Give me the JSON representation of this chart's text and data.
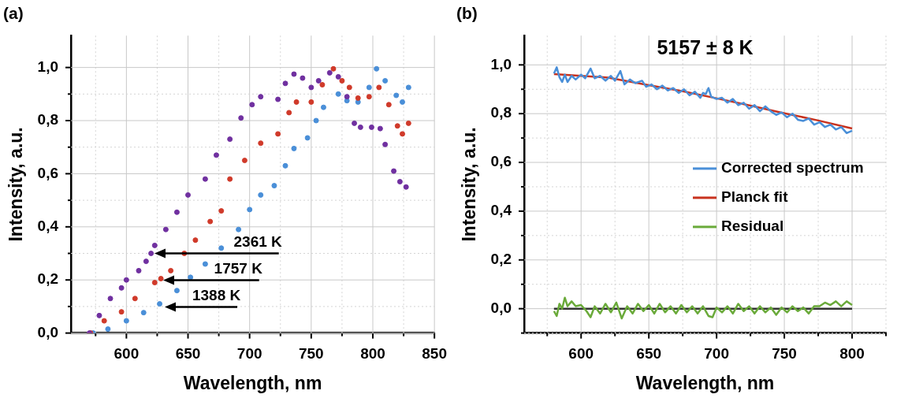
{
  "chart_data": [
    {
      "type": "scatter",
      "title": "(a)",
      "xlabel": "Wavelength, nm",
      "ylabel": "Intensity, a.u.",
      "marker": "circle",
      "grid": true,
      "legend": false,
      "xlim": [
        555,
        850
      ],
      "ylim": [
        0,
        1.12
      ],
      "xticks": [
        {
          "value": 575,
          "label": null
        },
        600,
        {
          "value": 625,
          "label": null
        },
        650,
        {
          "value": 675,
          "label": null
        },
        700,
        {
          "value": 725,
          "label": null
        },
        750,
        {
          "value": 775,
          "label": null
        },
        800,
        {
          "value": 825,
          "label": null
        },
        850
      ],
      "yticks": [
        {
          "value": 0,
          "label": "0,0"
        },
        {
          "value": 0.1,
          "label": null
        },
        {
          "value": 0.2,
          "label": "0,2"
        },
        {
          "value": 0.3,
          "label": null
        },
        {
          "value": 0.4,
          "label": "0,4"
        },
        {
          "value": 0.5,
          "label": null
        },
        {
          "value": 0.6,
          "label": "0,6"
        },
        {
          "value": 0.7,
          "label": null
        },
        {
          "value": 0.8,
          "label": "0,8"
        },
        {
          "value": 0.9,
          "label": null
        },
        {
          "value": 1.0,
          "label": "1,0"
        }
      ],
      "series": [
        {
          "color": "#7030a0",
          "x": [
            570,
            578,
            587,
            596,
            600,
            610,
            616,
            620,
            623,
            632,
            641,
            650,
            664,
            673,
            684,
            693,
            702,
            709,
            723,
            729,
            736,
            743,
            750,
            756,
            765,
            772,
            779,
            785,
            790,
            799,
            806,
            810,
            817,
            822,
            827
          ],
          "values": [
            0,
            0.066,
            0.13,
            0.17,
            0.2,
            0.235,
            0.27,
            0.3,
            0.33,
            0.39,
            0.455,
            0.52,
            0.58,
            0.67,
            0.73,
            0.81,
            0.86,
            0.89,
            0.88,
            0.94,
            0.975,
            0.96,
            0.925,
            0.95,
            0.98,
            0.965,
            0.89,
            0.79,
            0.775,
            0.775,
            0.77,
            0.71,
            0.61,
            0.57,
            0.55
          ]
        },
        {
          "color": "#d03a2a",
          "x": [
            571,
            582,
            596,
            607,
            623,
            628,
            636,
            647,
            656,
            668,
            677,
            684,
            696,
            709,
            723,
            732,
            738,
            750,
            759,
            768,
            775,
            781,
            788,
            797,
            805,
            813,
            820,
            824,
            829
          ],
          "values": [
            0,
            0.046,
            0.08,
            0.13,
            0.19,
            0.205,
            0.235,
            0.3,
            0.35,
            0.42,
            0.46,
            0.58,
            0.65,
            0.715,
            0.75,
            0.83,
            0.87,
            0.87,
            0.935,
            0.995,
            0.95,
            0.925,
            0.885,
            0.89,
            0.925,
            0.86,
            0.78,
            0.75,
            0.79
          ]
        },
        {
          "color": "#4a8fd8",
          "x": [
            573,
            585,
            600,
            614,
            627,
            641,
            652,
            664,
            677,
            691,
            700,
            709,
            720,
            729,
            736,
            747,
            754,
            760,
            772,
            779,
            788,
            797,
            803,
            810,
            819,
            824,
            829
          ],
          "values": [
            0,
            0.015,
            0.046,
            0.077,
            0.11,
            0.16,
            0.21,
            0.26,
            0.32,
            0.39,
            0.465,
            0.52,
            0.555,
            0.63,
            0.695,
            0.735,
            0.8,
            0.85,
            0.9,
            0.875,
            0.87,
            0.925,
            0.995,
            0.95,
            0.895,
            0.87,
            0.925
          ]
        }
      ],
      "annotations": [
        "2361 K",
        "1757 K",
        "1388 K"
      ]
    },
    {
      "type": "line",
      "title": "(b)",
      "subtitle": "5157 ± 8 K",
      "xlabel": "Wavelength, nm",
      "ylabel": "Intensity, a.u.",
      "marker": "none",
      "grid": true,
      "legend": "right",
      "xlim": [
        558,
        825
      ],
      "ylim": [
        -0.1,
        1.12
      ],
      "xticks": [
        {
          "value": 575,
          "label": null
        },
        600,
        {
          "value": 625,
          "label": null
        },
        650,
        {
          "value": 675,
          "label": null
        },
        700,
        {
          "value": 725,
          "label": null
        },
        750,
        {
          "value": 775,
          "label": null
        },
        800,
        {
          "value": 825,
          "label": null
        }
      ],
      "yticks": [
        {
          "value": -0.1,
          "label": null
        },
        {
          "value": 0,
          "label": "0,0"
        },
        {
          "value": 0.1,
          "label": null
        },
        {
          "value": 0.2,
          "label": "0,2"
        },
        {
          "value": 0.3,
          "label": null
        },
        {
          "value": 0.4,
          "label": "0,4"
        },
        {
          "value": 0.5,
          "label": null
        },
        {
          "value": 0.6,
          "label": "0,6"
        },
        {
          "value": 0.7,
          "label": null
        },
        {
          "value": 0.8,
          "label": "0,8"
        },
        {
          "value": 0.9,
          "label": null
        },
        {
          "value": 1.0,
          "label": "1,0"
        }
      ],
      "series": [
        {
          "name": "Corrected spectrum",
          "color": "#4a8fd8",
          "x": [
            580,
            582,
            584,
            586,
            588,
            590,
            593,
            596,
            600,
            603,
            607,
            610,
            614,
            618,
            622,
            625,
            629,
            632,
            636,
            640,
            645,
            648,
            652,
            656,
            660,
            664,
            668,
            672,
            676,
            680,
            684,
            688,
            690,
            692,
            694,
            696,
            700,
            704,
            708,
            712,
            716,
            720,
            724,
            728,
            732,
            736,
            740,
            744,
            748,
            752,
            756,
            760,
            764,
            768,
            772,
            776,
            780,
            784,
            788,
            792,
            796,
            800
          ],
          "values": [
            0.965,
            0.99,
            0.95,
            0.93,
            0.96,
            0.93,
            0.955,
            0.94,
            0.96,
            0.945,
            0.985,
            0.945,
            0.955,
            0.935,
            0.955,
            0.935,
            0.975,
            0.92,
            0.94,
            0.925,
            0.935,
            0.91,
            0.92,
            0.9,
            0.915,
            0.895,
            0.905,
            0.885,
            0.9,
            0.875,
            0.89,
            0.865,
            0.885,
            0.88,
            0.905,
            0.87,
            0.86,
            0.865,
            0.845,
            0.86,
            0.835,
            0.845,
            0.82,
            0.835,
            0.81,
            0.83,
            0.81,
            0.795,
            0.805,
            0.785,
            0.8,
            0.775,
            0.77,
            0.78,
            0.755,
            0.765,
            0.745,
            0.755,
            0.735,
            0.745,
            0.72,
            0.73
          ]
        },
        {
          "name": "Planck fit",
          "color": "#c8321e",
          "x": [
            580,
            620,
            649,
            675,
            699,
            725,
            748,
            775,
            800
          ],
          "values": [
            0.962,
            0.948,
            0.918,
            0.892,
            0.864,
            0.833,
            0.804,
            0.772,
            0.739
          ]
        },
        {
          "name": "Residual",
          "color": "#6aaa3a",
          "x": [
            580,
            582,
            584,
            586,
            588,
            590,
            593,
            596,
            600,
            604,
            607,
            610,
            614,
            618,
            622,
            626,
            630,
            634,
            638,
            642,
            646,
            650,
            654,
            658,
            662,
            666,
            670,
            674,
            678,
            682,
            686,
            690,
            694,
            697,
            700,
            704,
            708,
            712,
            716,
            720,
            724,
            728,
            732,
            736,
            740,
            744,
            748,
            752,
            756,
            760,
            764,
            768,
            772,
            776,
            780,
            784,
            788,
            792,
            796,
            800
          ],
          "values": [
            -0.01,
            -0.03,
            0.02,
            0.0,
            0.045,
            0.01,
            0.03,
            0.01,
            0.015,
            -0.01,
            -0.035,
            0.01,
            -0.02,
            0.02,
            -0.015,
            0.025,
            -0.04,
            0.01,
            -0.02,
            0.02,
            -0.01,
            0.015,
            -0.02,
            0.02,
            -0.015,
            0.01,
            -0.02,
            0.015,
            -0.015,
            0.01,
            -0.02,
            0.01,
            -0.03,
            -0.035,
            0.005,
            -0.015,
            0.01,
            -0.02,
            0.02,
            -0.01,
            0.01,
            -0.02,
            0.01,
            -0.015,
            0.005,
            -0.025,
            0.005,
            -0.015,
            0.01,
            -0.01,
            0.005,
            -0.02,
            0.01,
            0.01,
            0.025,
            0.015,
            0.03,
            0.01,
            0.03,
            0.015
          ]
        },
        {
          "color": "#333333",
          "x": [
            580,
            800
          ],
          "values": [
            0,
            0
          ]
        }
      ]
    }
  ]
}
